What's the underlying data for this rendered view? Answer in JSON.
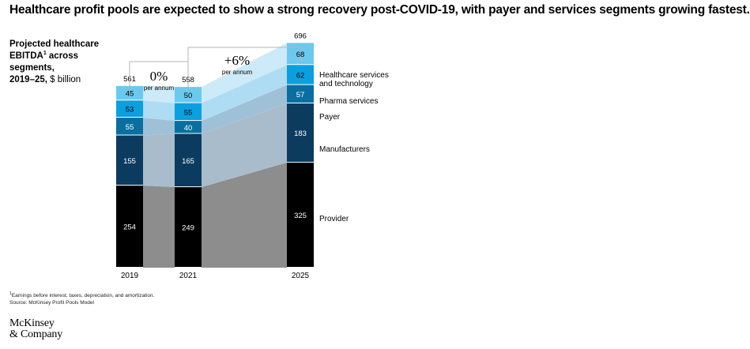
{
  "title": "Healthcare profit pools are expected to show a strong recovery post-COVID-19, with payer and services segments growing fastest.",
  "subtitle": {
    "line1": "Projected healthcare",
    "line2a": "EBITDA",
    "sup": "1",
    "line2b": " across",
    "line3": "segments,",
    "line4a": "2019–25,",
    "line4b": " $ billion"
  },
  "annotations": [
    {
      "value": "0%",
      "label": "per annum"
    },
    {
      "value": "+6%",
      "label": "per annum"
    }
  ],
  "footnote": {
    "sup": "1",
    "line1": "Earnings before interest, taxes, depreciation, and amortization.",
    "line2": "Source: McKinsey Profit Pools Model"
  },
  "logo": {
    "line1": "McKinsey",
    "line2": "& Company"
  },
  "chart_data": {
    "type": "bar",
    "stacked": true,
    "categories": [
      "2019",
      "2021",
      "2025"
    ],
    "totals": [
      561,
      558,
      696
    ],
    "series": [
      {
        "name": "Provider",
        "values": [
          254,
          249,
          325
        ],
        "color": "#000000",
        "label_color": "#ffffff"
      },
      {
        "name": "Manufacturers",
        "values": [
          155,
          165,
          183
        ],
        "color": "#0b3b5f",
        "label_color": "#ffffff"
      },
      {
        "name": "Payer",
        "values": [
          55,
          40,
          57
        ],
        "color": "#0a6fa0",
        "label_color": "#ffffff"
      },
      {
        "name": "Pharma services",
        "values": [
          53,
          55,
          62
        ],
        "color": "#0aa0e0",
        "label_color": "#000000"
      },
      {
        "name": "Healthcare services and technology",
        "values": [
          45,
          50,
          68
        ],
        "color": "#6cc9ee",
        "label_color": "#000000"
      }
    ],
    "band_colors": [
      "#8d8d8d",
      "#a9bccb",
      "#9ec1d8",
      "#aedcf3",
      "#cdeaf8"
    ],
    "legend_placement": "right",
    "grid": false
  }
}
